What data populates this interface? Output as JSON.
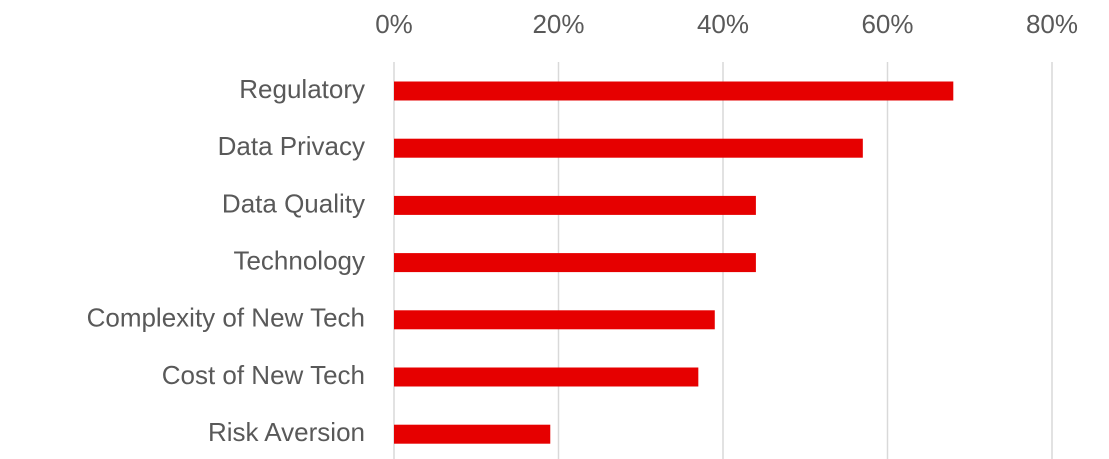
{
  "chart_data": {
    "type": "barh",
    "categories": [
      "Regulatory",
      "Data Privacy",
      "Data Quality",
      "Technology",
      "Complexity of New Tech",
      "Cost of New Tech",
      "Risk Aversion"
    ],
    "values": [
      68,
      57,
      44,
      44,
      39,
      37,
      19
    ],
    "color": "#e60000",
    "xlim": [
      0,
      80
    ],
    "xticks": [
      {
        "value": 0,
        "label": "0%"
      },
      {
        "value": 20,
        "label": "20%"
      },
      {
        "value": 40,
        "label": "40%"
      },
      {
        "value": 60,
        "label": "60%"
      },
      {
        "value": 80,
        "label": "80%"
      }
    ],
    "grid": true
  }
}
